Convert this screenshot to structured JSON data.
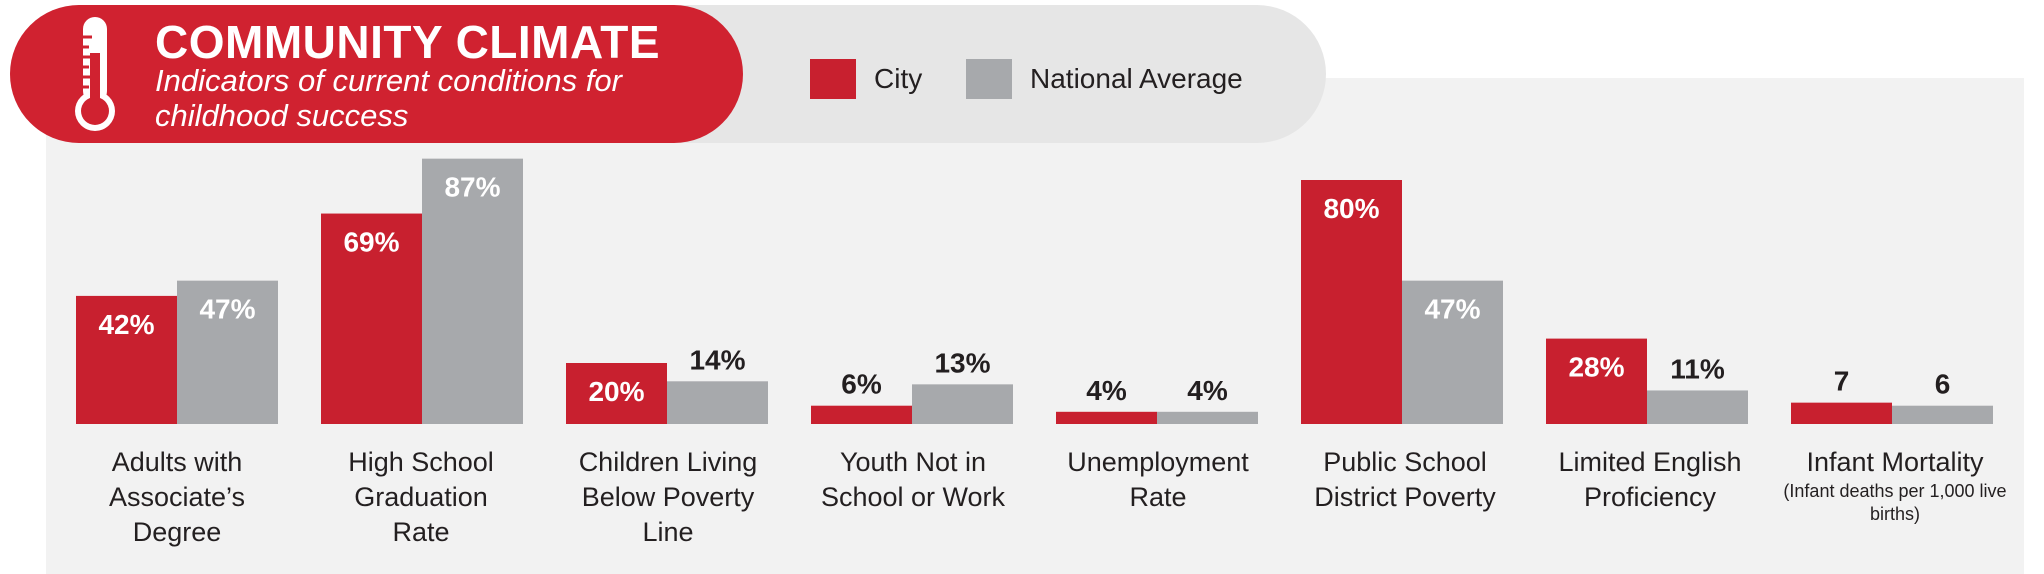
{
  "header": {
    "title": "COMMUNITY CLIMATE",
    "subtitle": "Indicators of current conditions for childhood success"
  },
  "legend": {
    "city_label": "City",
    "national_label": "National Average"
  },
  "colors": {
    "city": "#c8202f",
    "national": "#a7a9ac",
    "header_red": "#d02230"
  },
  "icons": {
    "header_icon": "thermometer-icon"
  },
  "chart_data": {
    "type": "bar",
    "categories": [
      "Adults with Associate's Degree",
      "High School Graduation Rate",
      "Children Living Below Poverty Line",
      "Youth Not in School or Work",
      "Unemployment Rate",
      "Public School District Poverty",
      "Limited English Proficiency",
      "Infant Mortality"
    ],
    "category_lines": [
      [
        "Adults with",
        "Associate’s",
        "Degree"
      ],
      [
        "High School",
        "Graduation",
        "Rate"
      ],
      [
        "Children Living",
        "Below Poverty",
        "Line"
      ],
      [
        "Youth Not in",
        "School or Work"
      ],
      [
        "Unemployment",
        "Rate"
      ],
      [
        "Public School",
        "District Poverty"
      ],
      [
        "Limited English",
        "Proficiency"
      ],
      [
        "Infant Mortality"
      ]
    ],
    "category_notes": [
      "",
      "",
      "",
      "",
      "",
      "",
      "",
      "(Infant deaths per 1,000 live births)"
    ],
    "series": [
      {
        "name": "City",
        "values": [
          42,
          69,
          20,
          6,
          4,
          80,
          28,
          7
        ],
        "labels": [
          "42%",
          "69%",
          "20%",
          "6%",
          "4%",
          "80%",
          "28%",
          "7"
        ]
      },
      {
        "name": "National Average",
        "values": [
          47,
          87,
          14,
          13,
          4,
          47,
          11,
          6
        ],
        "labels": [
          "47%",
          "87%",
          "14%",
          "13%",
          "4%",
          "47%",
          "11%",
          "6"
        ]
      }
    ],
    "ylim": [
      0,
      100
    ],
    "grid": false,
    "legend_position": "top"
  }
}
